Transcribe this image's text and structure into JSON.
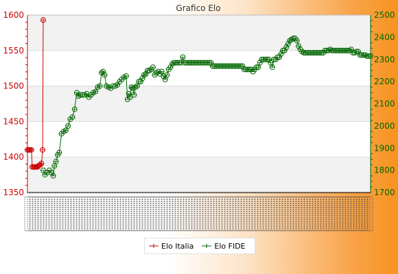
{
  "chart_data": {
    "type": "line",
    "title": "Grafico Elo",
    "left_axis": {
      "min": 1350,
      "max": 1600,
      "ticks": [
        1350,
        1400,
        1450,
        1500,
        1550,
        1600
      ],
      "color": "#cc0000"
    },
    "right_axis": {
      "min": 1700,
      "max": 2500,
      "ticks": [
        1700,
        1800,
        1900,
        2000,
        2100,
        2200,
        2300,
        2400,
        2500
      ],
      "color": "#006600"
    },
    "x_tick_labels_overlapping": true,
    "grid": "horizontal bands",
    "legend_position": "bottom",
    "series": [
      {
        "name": "Elo Italia",
        "axis": "left",
        "color": "#cc0000",
        "marker": "circle-cross",
        "points": [
          [
            0,
            1410
          ],
          [
            0.6,
            1410
          ],
          [
            1.2,
            1410
          ],
          [
            1.8,
            1410
          ],
          [
            2.2,
            1386
          ],
          [
            2.8,
            1386
          ],
          [
            3.4,
            1386
          ],
          [
            4.0,
            1386
          ],
          [
            4.6,
            1386
          ],
          [
            5.2,
            1388
          ],
          [
            5.8,
            1389
          ],
          [
            6.4,
            1391
          ],
          [
            6.9,
            1410
          ],
          [
            7.2,
            1593
          ]
        ]
      },
      {
        "name": "Elo FIDE",
        "axis": "right",
        "color": "#006600",
        "marker": "circle",
        "points": [
          [
            7.2,
            1800
          ],
          [
            8,
            1780
          ],
          [
            9,
            1790
          ],
          [
            10,
            1800
          ],
          [
            11,
            1790
          ],
          [
            11.8,
            1775
          ],
          [
            12.3,
            1820
          ],
          [
            13,
            1840
          ],
          [
            13.8,
            1870
          ],
          [
            14.5,
            1880
          ],
          [
            15.5,
            1965
          ],
          [
            16.5,
            1975
          ],
          [
            17.5,
            1980
          ],
          [
            18.5,
            2000
          ],
          [
            19.5,
            2030
          ],
          [
            20.5,
            2040
          ],
          [
            21.5,
            2075
          ],
          [
            22.5,
            2150
          ],
          [
            23.3,
            2135
          ],
          [
            24,
            2140
          ],
          [
            25,
            2140
          ],
          [
            26,
            2140
          ],
          [
            27,
            2145
          ],
          [
            28,
            2130
          ],
          [
            29,
            2140
          ],
          [
            30,
            2150
          ],
          [
            31,
            2155
          ],
          [
            32,
            2175
          ],
          [
            33,
            2180
          ],
          [
            33.8,
            2240
          ],
          [
            34.5,
            2245
          ],
          [
            35.2,
            2230
          ],
          [
            36,
            2180
          ],
          [
            37,
            2175
          ],
          [
            38,
            2170
          ],
          [
            39,
            2180
          ],
          [
            40,
            2180
          ],
          [
            41,
            2185
          ],
          [
            42,
            2200
          ],
          [
            43,
            2210
          ],
          [
            44,
            2220
          ],
          [
            45,
            2225
          ],
          [
            45.6,
            2120
          ],
          [
            46.2,
            2145
          ],
          [
            46.8,
            2130
          ],
          [
            47.4,
            2175
          ],
          [
            48,
            2170
          ],
          [
            48.6,
            2140
          ],
          [
            49.2,
            2175
          ],
          [
            50,
            2180
          ],
          [
            50.8,
            2200
          ],
          [
            51.6,
            2200
          ],
          [
            52.4,
            2215
          ],
          [
            53.2,
            2230
          ],
          [
            54,
            2235
          ],
          [
            54.8,
            2250
          ],
          [
            55.6,
            2250
          ],
          [
            56.4,
            2255
          ],
          [
            57.2,
            2265
          ],
          [
            58,
            2230
          ],
          [
            58.8,
            2240
          ],
          [
            59.6,
            2245
          ],
          [
            60.4,
            2235
          ],
          [
            61.2,
            2245
          ],
          [
            62,
            2225
          ],
          [
            62.8,
            2210
          ],
          [
            63.6,
            2230
          ],
          [
            64.4,
            2255
          ],
          [
            65.2,
            2265
          ],
          [
            66,
            2280
          ],
          [
            66.8,
            2285
          ],
          [
            67.6,
            2285
          ],
          [
            68.4,
            2285
          ],
          [
            69.2,
            2285
          ],
          [
            70,
            2285
          ],
          [
            70.8,
            2310
          ],
          [
            71.6,
            2285
          ],
          [
            72.4,
            2285
          ],
          [
            73.2,
            2285
          ],
          [
            74,
            2285
          ],
          [
            74.8,
            2285
          ],
          [
            75.6,
            2285
          ],
          [
            76.4,
            2285
          ],
          [
            77.2,
            2285
          ],
          [
            78,
            2285
          ],
          [
            78.8,
            2285
          ],
          [
            79.6,
            2285
          ],
          [
            80.4,
            2285
          ],
          [
            81.2,
            2285
          ],
          [
            82,
            2285
          ],
          [
            82.8,
            2285
          ],
          [
            83.6,
            2285
          ],
          [
            84.4,
            2270
          ],
          [
            85.2,
            2270
          ],
          [
            86,
            2270
          ],
          [
            86.8,
            2270
          ],
          [
            87.6,
            2270
          ],
          [
            88.4,
            2270
          ],
          [
            89.2,
            2270
          ],
          [
            90,
            2270
          ],
          [
            90.8,
            2270
          ],
          [
            91.6,
            2270
          ],
          [
            92.4,
            2270
          ],
          [
            93.2,
            2270
          ],
          [
            94,
            2270
          ],
          [
            94.8,
            2270
          ],
          [
            95.6,
            2270
          ],
          [
            96.4,
            2270
          ],
          [
            97.2,
            2270
          ],
          [
            98,
            2270
          ],
          [
            98.8,
            2255
          ],
          [
            99.6,
            2255
          ],
          [
            100.4,
            2255
          ],
          [
            101.2,
            2255
          ],
          [
            102,
            2255
          ],
          [
            102.8,
            2245
          ],
          [
            103.6,
            2255
          ],
          [
            104.4,
            2265
          ],
          [
            105.2,
            2265
          ],
          [
            106,
            2285
          ],
          [
            106.8,
            2300
          ],
          [
            107.6,
            2300
          ],
          [
            108.4,
            2300
          ],
          [
            109.2,
            2300
          ],
          [
            110,
            2300
          ],
          [
            110.8,
            2285
          ],
          [
            111.6,
            2265
          ],
          [
            112.4,
            2300
          ],
          [
            113.2,
            2300
          ],
          [
            114,
            2310
          ],
          [
            114.8,
            2310
          ],
          [
            115.6,
            2325
          ],
          [
            116.4,
            2340
          ],
          [
            117.2,
            2340
          ],
          [
            118,
            2355
          ],
          [
            118.8,
            2370
          ],
          [
            119.6,
            2385
          ],
          [
            120.4,
            2390
          ],
          [
            121.2,
            2395
          ],
          [
            122,
            2395
          ],
          [
            122.8,
            2385
          ],
          [
            123.6,
            2360
          ],
          [
            124.4,
            2345
          ],
          [
            125.2,
            2335
          ],
          [
            126,
            2330
          ],
          [
            126.8,
            2330
          ],
          [
            127.6,
            2330
          ],
          [
            128.4,
            2330
          ],
          [
            129.2,
            2330
          ],
          [
            130,
            2330
          ],
          [
            130.8,
            2330
          ],
          [
            131.6,
            2330
          ],
          [
            132.4,
            2330
          ],
          [
            133.2,
            2330
          ],
          [
            134,
            2330
          ],
          [
            134.8,
            2330
          ],
          [
            135.6,
            2340
          ],
          [
            136.4,
            2340
          ],
          [
            137.2,
            2340
          ],
          [
            138,
            2345
          ],
          [
            138.8,
            2340
          ],
          [
            139.6,
            2340
          ],
          [
            140.4,
            2340
          ],
          [
            141.2,
            2340
          ],
          [
            142,
            2340
          ],
          [
            142.8,
            2340
          ],
          [
            143.6,
            2340
          ],
          [
            144.4,
            2340
          ],
          [
            145.2,
            2340
          ],
          [
            146,
            2340
          ],
          [
            146.8,
            2340
          ],
          [
            147.6,
            2345
          ],
          [
            148.4,
            2330
          ],
          [
            149.2,
            2330
          ],
          [
            150,
            2335
          ],
          [
            150.8,
            2335
          ],
          [
            151.6,
            2320
          ],
          [
            152.4,
            2320
          ],
          [
            153.2,
            2320
          ],
          [
            154,
            2320
          ],
          [
            154.8,
            2315
          ],
          [
            155.6,
            2315
          ],
          [
            156.4,
            2315
          ]
        ]
      }
    ]
  }
}
